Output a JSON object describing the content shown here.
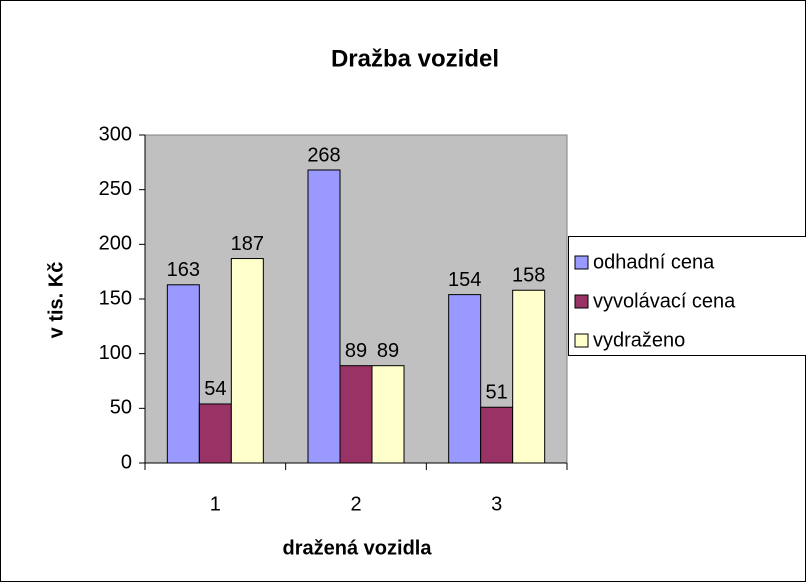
{
  "chart_data": {
    "type": "bar",
    "title": "Dražba vozidel",
    "x_label": "dražená vozidla",
    "y_label": "v tis. Kč",
    "categories": [
      "1",
      "2",
      "3"
    ],
    "series": [
      {
        "name": "odhadní cena",
        "color": "#9999ff",
        "values": [
          163,
          268,
          154
        ]
      },
      {
        "name": "vyvolávací cena",
        "color": "#993366",
        "values": [
          54,
          89,
          51
        ]
      },
      {
        "name": "vydraženo",
        "color": "#ffffcc",
        "values": [
          187,
          89,
          158
        ]
      }
    ],
    "ylim": [
      0,
      300
    ],
    "yticks": [
      0,
      50,
      100,
      150,
      200,
      250,
      300
    ],
    "grid": false,
    "plot_background": "#c0c0c0",
    "legend": "right"
  }
}
